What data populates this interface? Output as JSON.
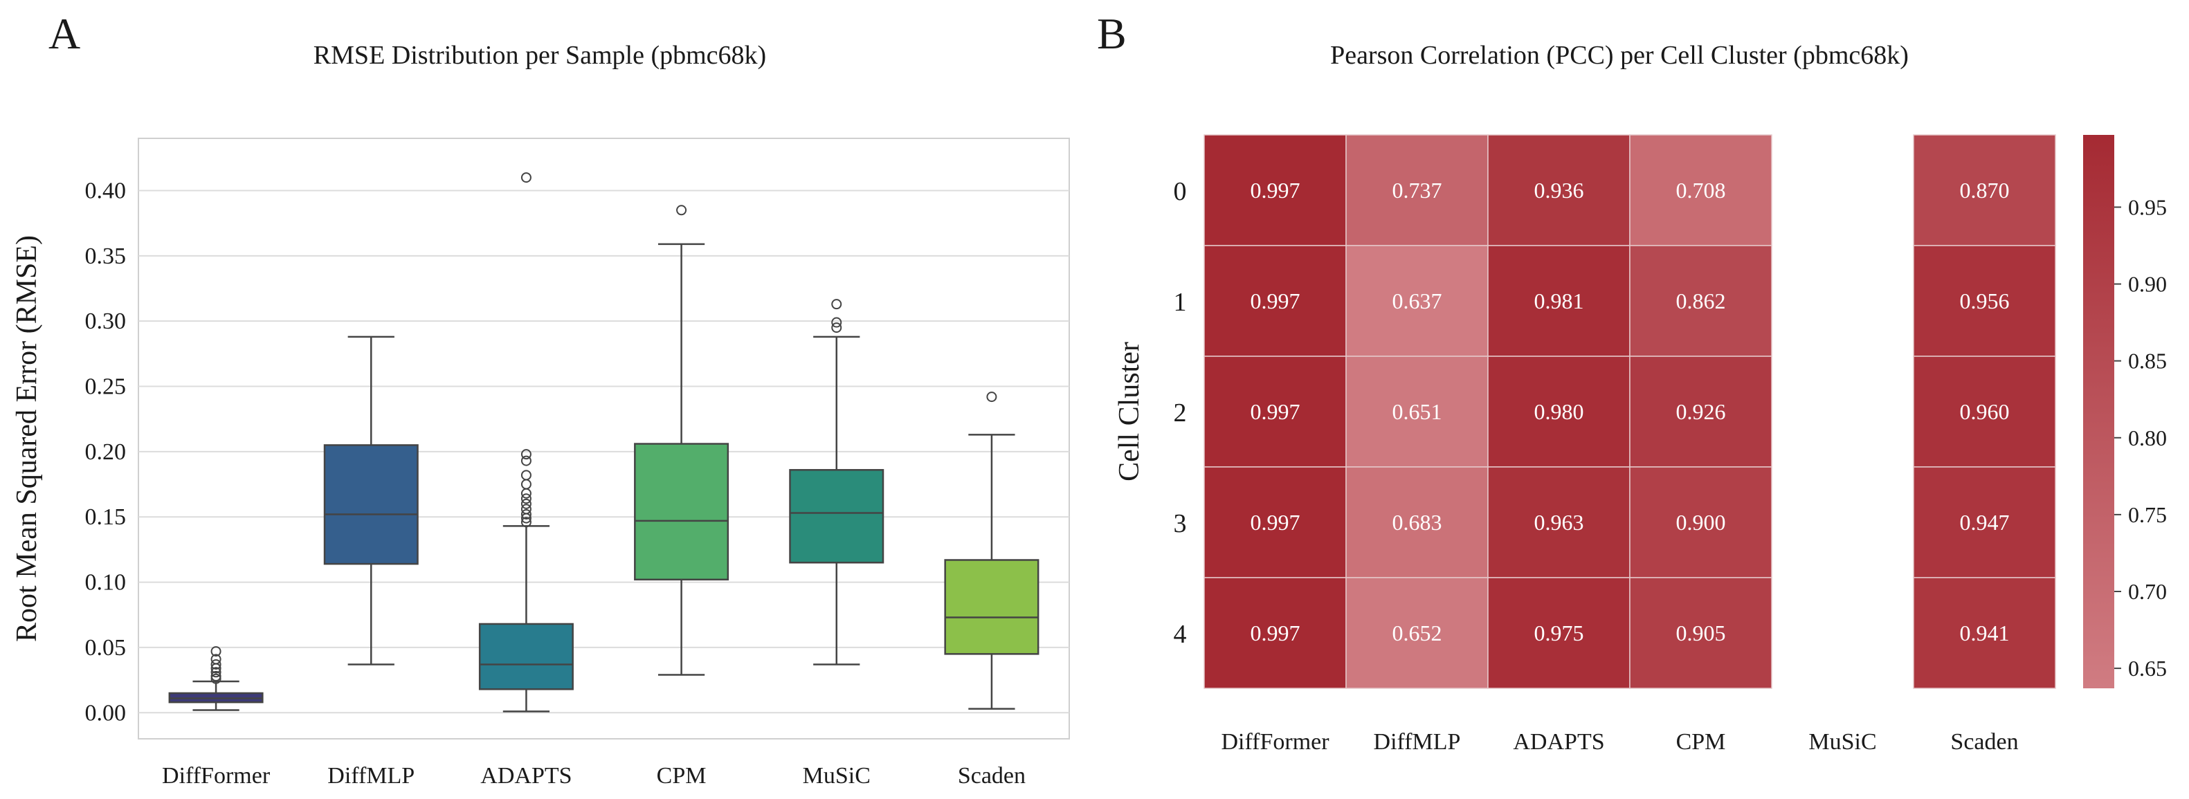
{
  "chart_data": [
    {
      "panel": "A",
      "type": "box",
      "title": "RMSE Distribution per Sample (pbmc68k)",
      "xlabel": "",
      "ylabel": "Root Mean Squared Error (RMSE)",
      "ylim": [
        -0.02,
        0.44
      ],
      "yticks": [
        "0.00",
        "0.05",
        "0.10",
        "0.15",
        "0.20",
        "0.25",
        "0.30",
        "0.35",
        "0.40"
      ],
      "grid": true,
      "categories": [
        "DiffFormer",
        "DiffMLP",
        "ADAPTS",
        "CPM",
        "MuSiC",
        "Scaden"
      ],
      "boxes": [
        {
          "name": "DiffFormer",
          "whisker_low": 0.002,
          "q1": 0.008,
          "median": 0.011,
          "q3": 0.015,
          "whisker_high": 0.024,
          "outliers": [
            0.026,
            0.028,
            0.031,
            0.034,
            0.037,
            0.041,
            0.047
          ],
          "color": "#3d3a78"
        },
        {
          "name": "DiffMLP",
          "whisker_low": 0.037,
          "q1": 0.114,
          "median": 0.152,
          "q3": 0.205,
          "whisker_high": 0.288,
          "outliers": [],
          "color": "#355f8d"
        },
        {
          "name": "ADAPTS",
          "whisker_low": 0.001,
          "q1": 0.018,
          "median": 0.037,
          "q3": 0.068,
          "whisker_high": 0.143,
          "outliers": [
            0.146,
            0.149,
            0.152,
            0.156,
            0.16,
            0.164,
            0.168,
            0.175,
            0.182,
            0.193,
            0.198,
            0.41
          ],
          "color": "#287c8e"
        },
        {
          "name": "CPM",
          "whisker_low": 0.029,
          "q1": 0.102,
          "median": 0.147,
          "q3": 0.206,
          "whisker_high": 0.359,
          "outliers": [
            0.385
          ],
          "color": "#53ae6b"
        },
        {
          "name": "MuSiC",
          "whisker_low": 0.037,
          "q1": 0.115,
          "median": 0.153,
          "q3": 0.186,
          "whisker_high": 0.288,
          "outliers": [
            0.295,
            0.299,
            0.313
          ],
          "color": "#2a8c7a"
        },
        {
          "name": "Scaden",
          "whisker_low": 0.003,
          "q1": 0.045,
          "median": 0.073,
          "q3": 0.117,
          "whisker_high": 0.213,
          "outliers": [
            0.242
          ],
          "color": "#8cc04a"
        }
      ]
    },
    {
      "panel": "B",
      "type": "heatmap",
      "title": "Pearson Correlation (PCC) per Cell Cluster (pbmc68k)",
      "ylabel": "Cell Cluster",
      "columns": [
        "DiffFormer",
        "DiffMLP",
        "ADAPTS",
        "CPM",
        "MuSiC",
        "Scaden"
      ],
      "rows": [
        "0",
        "1",
        "2",
        "3",
        "4"
      ],
      "values": [
        [
          0.997,
          0.737,
          0.936,
          0.708,
          null,
          0.87
        ],
        [
          0.997,
          0.637,
          0.981,
          0.862,
          null,
          0.956
        ],
        [
          0.997,
          0.651,
          0.98,
          0.926,
          null,
          0.96
        ],
        [
          0.997,
          0.683,
          0.963,
          0.9,
          null,
          0.947
        ],
        [
          0.997,
          0.652,
          0.975,
          0.905,
          null,
          0.941
        ]
      ],
      "labels": [
        [
          "0.997",
          "0.737",
          "0.936",
          "0.708",
          "",
          "0.870"
        ],
        [
          "0.997",
          "0.637",
          "0.981",
          "0.862",
          "",
          "0.956"
        ],
        [
          "0.997",
          "0.651",
          "0.980",
          "0.926",
          "",
          "0.960"
        ],
        [
          "0.997",
          "0.683",
          "0.963",
          "0.900",
          "",
          "0.947"
        ],
        [
          "0.997",
          "0.652",
          "0.975",
          "0.905",
          "",
          "0.941"
        ]
      ],
      "vmin": 0.637,
      "vmax": 0.997,
      "colorbar_ticks": [
        "0.65",
        "0.70",
        "0.75",
        "0.80",
        "0.85",
        "0.90",
        "0.95"
      ],
      "colormap_low": "#d07c82",
      "colormap_high": "#a52a33"
    }
  ],
  "panel_letters": {
    "a": "A",
    "b": "B"
  }
}
